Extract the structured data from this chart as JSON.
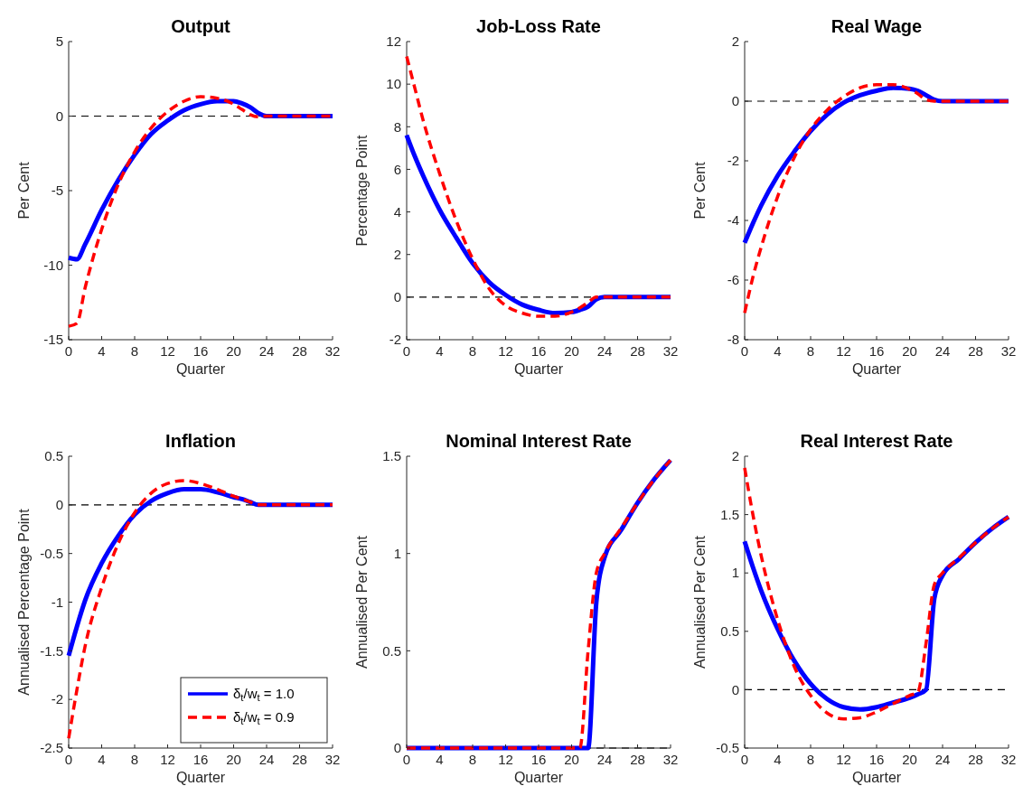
{
  "chart_data": [
    {
      "type": "line",
      "title": "Output",
      "xlabel": "Quarter",
      "ylabel": "Per Cent",
      "x": [
        0,
        1,
        2,
        4,
        6,
        8,
        10,
        12,
        14,
        16,
        18,
        20,
        21,
        22,
        23,
        24,
        26,
        28,
        30,
        32
      ],
      "xlim": [
        0,
        32
      ],
      "xticks": [
        0,
        4,
        8,
        12,
        16,
        20,
        24,
        28,
        32
      ],
      "ylim": [
        -15,
        5
      ],
      "yticks": [
        -15,
        -10,
        -5,
        0,
        5
      ],
      "legend": false,
      "ref_lines": [
        {
          "axis": "y",
          "value": 0,
          "color": "#000000",
          "line_style": "dashed"
        }
      ],
      "series": [
        {
          "color": "#0000ff",
          "line_style": "solid",
          "values": [
            -9.5,
            -9.6,
            -8.6,
            -6.3,
            -4.3,
            -2.6,
            -1.2,
            -0.3,
            0.4,
            0.8,
            1.0,
            1.0,
            0.85,
            0.6,
            0.2,
            0,
            0,
            0,
            0,
            0
          ]
        },
        {
          "color": "#ff0000",
          "line_style": "dashed",
          "values": [
            -14.1,
            -13.9,
            -11.5,
            -7.6,
            -4.6,
            -2.4,
            -0.8,
            0.3,
            1.0,
            1.3,
            1.2,
            0.8,
            0.45,
            0.1,
            -0.05,
            0,
            0,
            0,
            0,
            0
          ]
        }
      ]
    },
    {
      "type": "line",
      "title": "Job-Loss Rate",
      "xlabel": "Quarter",
      "ylabel": "Percentage Point",
      "x": [
        0,
        1,
        2,
        4,
        6,
        8,
        10,
        12,
        14,
        16,
        18,
        20,
        21,
        22,
        23,
        24,
        26,
        28,
        30,
        32
      ],
      "xlim": [
        0,
        32
      ],
      "xticks": [
        0,
        4,
        8,
        12,
        16,
        20,
        24,
        28,
        32
      ],
      "ylim": [
        -2,
        12
      ],
      "yticks": [
        -2,
        0,
        2,
        4,
        6,
        8,
        10,
        12
      ],
      "legend": false,
      "ref_lines": [
        {
          "axis": "y",
          "value": 0,
          "color": "#000000",
          "line_style": "dashed"
        }
      ],
      "series": [
        {
          "color": "#0000ff",
          "line_style": "solid",
          "values": [
            7.6,
            6.6,
            5.7,
            4.1,
            2.8,
            1.6,
            0.7,
            0.1,
            -0.35,
            -0.6,
            -0.75,
            -0.7,
            -0.6,
            -0.45,
            -0.1,
            0,
            0,
            0,
            0,
            0
          ]
        },
        {
          "color": "#ff0000",
          "line_style": "dashed",
          "values": [
            11.3,
            9.8,
            8.3,
            5.8,
            3.6,
            1.8,
            0.4,
            -0.4,
            -0.75,
            -0.9,
            -0.9,
            -0.7,
            -0.5,
            -0.25,
            0,
            0,
            0,
            0,
            0,
            0
          ]
        }
      ]
    },
    {
      "type": "line",
      "title": "Real Wage",
      "xlabel": "Quarter",
      "ylabel": "Per Cent",
      "x": [
        0,
        1,
        2,
        4,
        6,
        8,
        10,
        12,
        14,
        16,
        18,
        20,
        21,
        22,
        23,
        24,
        26,
        28,
        30,
        32
      ],
      "xlim": [
        0,
        32
      ],
      "xticks": [
        0,
        4,
        8,
        12,
        16,
        20,
        24,
        28,
        32
      ],
      "ylim": [
        -8,
        2
      ],
      "yticks": [
        -8,
        -6,
        -4,
        -2,
        0,
        2
      ],
      "legend": false,
      "ref_lines": [
        {
          "axis": "y",
          "value": 0,
          "color": "#000000",
          "line_style": "dashed"
        }
      ],
      "series": [
        {
          "color": "#0000ff",
          "line_style": "solid",
          "values": [
            -4.75,
            -4.1,
            -3.5,
            -2.5,
            -1.7,
            -1.0,
            -0.45,
            -0.05,
            0.2,
            0.35,
            0.45,
            0.42,
            0.35,
            0.2,
            0.05,
            0,
            0,
            0,
            0,
            0
          ]
        },
        {
          "color": "#ff0000",
          "line_style": "dashed",
          "values": [
            -7.1,
            -5.9,
            -4.9,
            -3.2,
            -1.9,
            -0.95,
            -0.3,
            0.15,
            0.45,
            0.55,
            0.55,
            0.4,
            0.25,
            0.05,
            0,
            0,
            0,
            0,
            0,
            0
          ]
        }
      ]
    },
    {
      "type": "line",
      "title": "Inflation",
      "xlabel": "Quarter",
      "ylabel": "Annualised Percentage Point",
      "x": [
        0,
        1,
        2,
        4,
        6,
        8,
        10,
        12,
        14,
        16,
        18,
        20,
        21,
        22,
        23,
        24,
        26,
        28,
        30,
        32
      ],
      "xlim": [
        0,
        32
      ],
      "xticks": [
        0,
        4,
        8,
        12,
        16,
        20,
        24,
        28,
        32
      ],
      "ylim": [
        -2.5,
        0.5
      ],
      "yticks": [
        -2.5,
        -2,
        -1.5,
        -1,
        -0.5,
        0,
        0.5
      ],
      "legend": "bottom right",
      "ref_lines": [
        {
          "axis": "y",
          "value": 0,
          "color": "#000000",
          "line_style": "dashed"
        }
      ],
      "series": [
        {
          "name": "δ$_{t}$/w$_{t}$ = 1.0",
          "color": "#0000ff",
          "line_style": "solid",
          "values": [
            -1.55,
            -1.25,
            -0.98,
            -0.6,
            -0.32,
            -0.1,
            0.04,
            0.12,
            0.16,
            0.16,
            0.13,
            0.08,
            0.06,
            0.03,
            0,
            0,
            0,
            0,
            0,
            0
          ]
        },
        {
          "name": "δ$_{t}$/w$_{t}$ = 0.9",
          "color": "#ff0000",
          "line_style": "dashed",
          "values": [
            -2.4,
            -1.9,
            -1.45,
            -0.85,
            -0.4,
            -0.08,
            0.12,
            0.22,
            0.25,
            0.22,
            0.16,
            0.09,
            0.06,
            0.03,
            0,
            0,
            0,
            0,
            0,
            0
          ]
        }
      ]
    },
    {
      "type": "line",
      "title": "Nominal Interest Rate",
      "xlabel": "Quarter",
      "ylabel": "Annualised Per Cent",
      "x": [
        0,
        1,
        2,
        4,
        6,
        8,
        10,
        12,
        14,
        16,
        18,
        20,
        21,
        22,
        23,
        24,
        26,
        28,
        30,
        32
      ],
      "xlim": [
        0,
        32
      ],
      "xticks": [
        0,
        4,
        8,
        12,
        16,
        20,
        24,
        28,
        32
      ],
      "ylim": [
        0,
        1.5
      ],
      "yticks": [
        0,
        0.5,
        1,
        1.5
      ],
      "legend": false,
      "ref_lines": [
        {
          "axis": "y",
          "value": 0,
          "color": "#000000",
          "line_style": "dashed"
        }
      ],
      "series": [
        {
          "color": "#0000ff",
          "line_style": "solid",
          "values": [
            0,
            0,
            0,
            0,
            0,
            0,
            0,
            0,
            0,
            0,
            0,
            0,
            0,
            0,
            0.75,
            0.98,
            1.12,
            1.26,
            1.38,
            1.48
          ]
        },
        {
          "color": "#ff0000",
          "line_style": "dashed",
          "values": [
            0,
            0,
            0,
            0,
            0,
            0,
            0,
            0,
            0,
            0,
            0,
            0,
            0,
            0.5,
            0.9,
            1.0,
            1.13,
            1.26,
            1.38,
            1.48
          ]
        }
      ]
    },
    {
      "type": "line",
      "title": "Real Interest Rate",
      "xlabel": "Quarter",
      "ylabel": "Annualised Per Cent",
      "x": [
        0,
        1,
        2,
        4,
        6,
        8,
        10,
        12,
        14,
        16,
        18,
        20,
        21,
        22,
        23,
        24,
        26,
        28,
        30,
        32
      ],
      "xlim": [
        0,
        32
      ],
      "xticks": [
        0,
        4,
        8,
        12,
        16,
        20,
        24,
        28,
        32
      ],
      "ylim": [
        -0.5,
        2
      ],
      "yticks": [
        -0.5,
        0,
        0.5,
        1,
        1.5,
        2
      ],
      "legend": false,
      "ref_lines": [
        {
          "axis": "y",
          "value": 0,
          "color": "#000000",
          "line_style": "dashed"
        }
      ],
      "series": [
        {
          "color": "#0000ff",
          "line_style": "solid",
          "values": [
            1.27,
            1.05,
            0.85,
            0.52,
            0.25,
            0.05,
            -0.08,
            -0.15,
            -0.17,
            -0.15,
            -0.11,
            -0.07,
            -0.04,
            0,
            0.78,
            0.98,
            1.12,
            1.26,
            1.38,
            1.48
          ]
        },
        {
          "color": "#ff0000",
          "line_style": "dashed",
          "values": [
            1.9,
            1.5,
            1.15,
            0.6,
            0.2,
            -0.05,
            -0.2,
            -0.25,
            -0.24,
            -0.19,
            -0.12,
            -0.05,
            -0.02,
            0.4,
            0.9,
            1.0,
            1.13,
            1.26,
            1.38,
            1.48
          ]
        }
      ]
    }
  ]
}
